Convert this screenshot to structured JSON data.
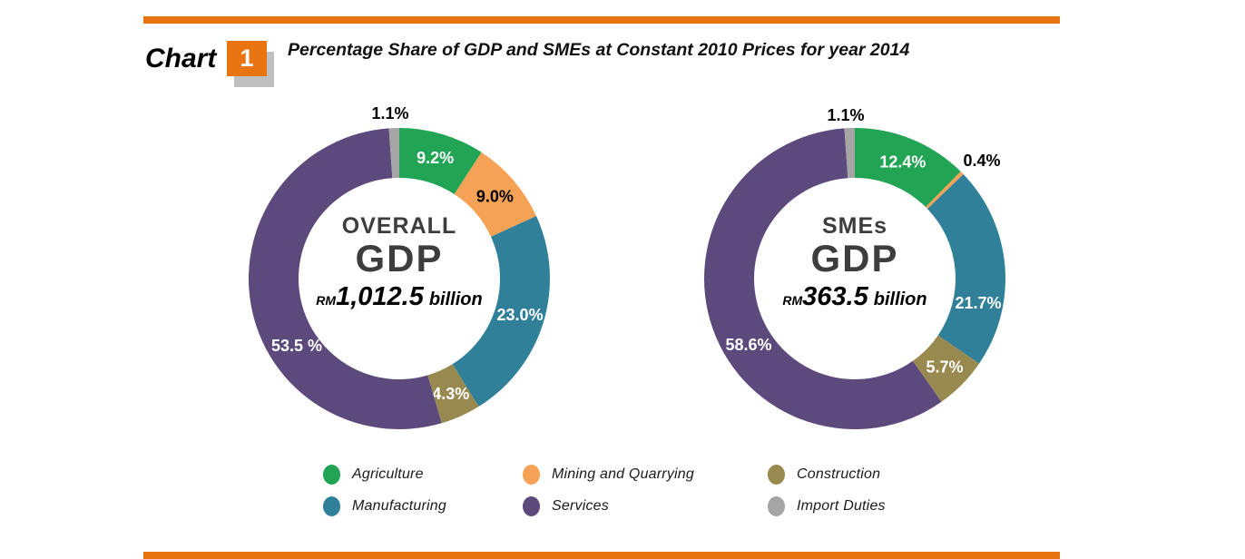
{
  "header": {
    "chart_word": "Chart",
    "chart_number": "1",
    "title": "Percentage Share of GDP and SMEs at Constant 2010 Prices for year 2014"
  },
  "colors": {
    "accent_orange": "#E87511",
    "badge_shadow_gray": "#BFBFBF",
    "agriculture_green": "#22A455",
    "mining_orange": "#F5A156",
    "manufacturing_teal": "#31809A",
    "construction_olive": "#98894F",
    "services_purple": "#5D4A7D",
    "import_duties_gray": "#A5A5A5"
  },
  "chart_data": [
    {
      "type": "pie",
      "subtype": "donut",
      "name": "overall-gdp",
      "center_label": {
        "line1": "OVERALL",
        "line2": "GDP",
        "currency": "RM",
        "amount": "1,012.5",
        "unit": "billion"
      },
      "slices": [
        {
          "category": "Agriculture",
          "value": 9.2,
          "display": "9.2%",
          "color": "#22A455",
          "label_color": "#FFFFFF",
          "label_placement": "inside"
        },
        {
          "category": "Mining and Quarrying",
          "value": 9.0,
          "display": "9.0%",
          "color": "#F5A156",
          "label_color": "#000000",
          "label_placement": "inside"
        },
        {
          "category": "Manufacturing",
          "value": 23.0,
          "display": "23.0%",
          "color": "#31809A",
          "label_color": "#FFFFFF",
          "label_placement": "inside"
        },
        {
          "category": "Construction",
          "value": 4.3,
          "display": "4.3%",
          "color": "#98894F",
          "label_color": "#FFFFFF",
          "label_placement": "inside"
        },
        {
          "category": "Services",
          "value": 53.5,
          "display": "53.5 %",
          "color": "#5D4A7D",
          "label_color": "#FFFFFF",
          "label_placement": "inside"
        },
        {
          "category": "Import Duties",
          "value": 1.1,
          "display": "1.1%",
          "color": "#A5A5A5",
          "label_color": "#000000",
          "label_placement": "outside"
        }
      ]
    },
    {
      "type": "pie",
      "subtype": "donut",
      "name": "smes-gdp",
      "center_label": {
        "line1": "SMEs",
        "line2": "GDP",
        "currency": "RM",
        "amount": "363.5",
        "unit": "billion"
      },
      "slices": [
        {
          "category": "Agriculture",
          "value": 12.4,
          "display": "12.4%",
          "color": "#22A455",
          "label_color": "#FFFFFF",
          "label_placement": "inside"
        },
        {
          "category": "Mining and Quarrying",
          "value": 0.4,
          "display": "0.4%",
          "color": "#F5A156",
          "label_color": "#000000",
          "label_placement": "outside"
        },
        {
          "category": "Manufacturing",
          "value": 21.7,
          "display": "21.7%",
          "color": "#31809A",
          "label_color": "#FFFFFF",
          "label_placement": "inside"
        },
        {
          "category": "Construction",
          "value": 5.7,
          "display": "5.7%",
          "color": "#98894F",
          "label_color": "#FFFFFF",
          "label_placement": "inside"
        },
        {
          "category": "Services",
          "value": 58.6,
          "display": "58.6%",
          "color": "#5D4A7D",
          "label_color": "#FFFFFF",
          "label_placement": "inside"
        },
        {
          "category": "Import Duties",
          "value": 1.1,
          "display": "1.1%",
          "color": "#A5A5A5",
          "label_color": "#000000",
          "label_placement": "outside"
        }
      ]
    }
  ],
  "legend": {
    "items": [
      {
        "label": "Agriculture",
        "color": "#22A455"
      },
      {
        "label": "Mining and Quarrying",
        "color": "#F5A156"
      },
      {
        "label": "Construction",
        "color": "#98894F"
      },
      {
        "label": "Manufacturing",
        "color": "#31809A"
      },
      {
        "label": "Services",
        "color": "#5D4A7D"
      },
      {
        "label": "Import Duties",
        "color": "#A5A5A5"
      }
    ]
  }
}
